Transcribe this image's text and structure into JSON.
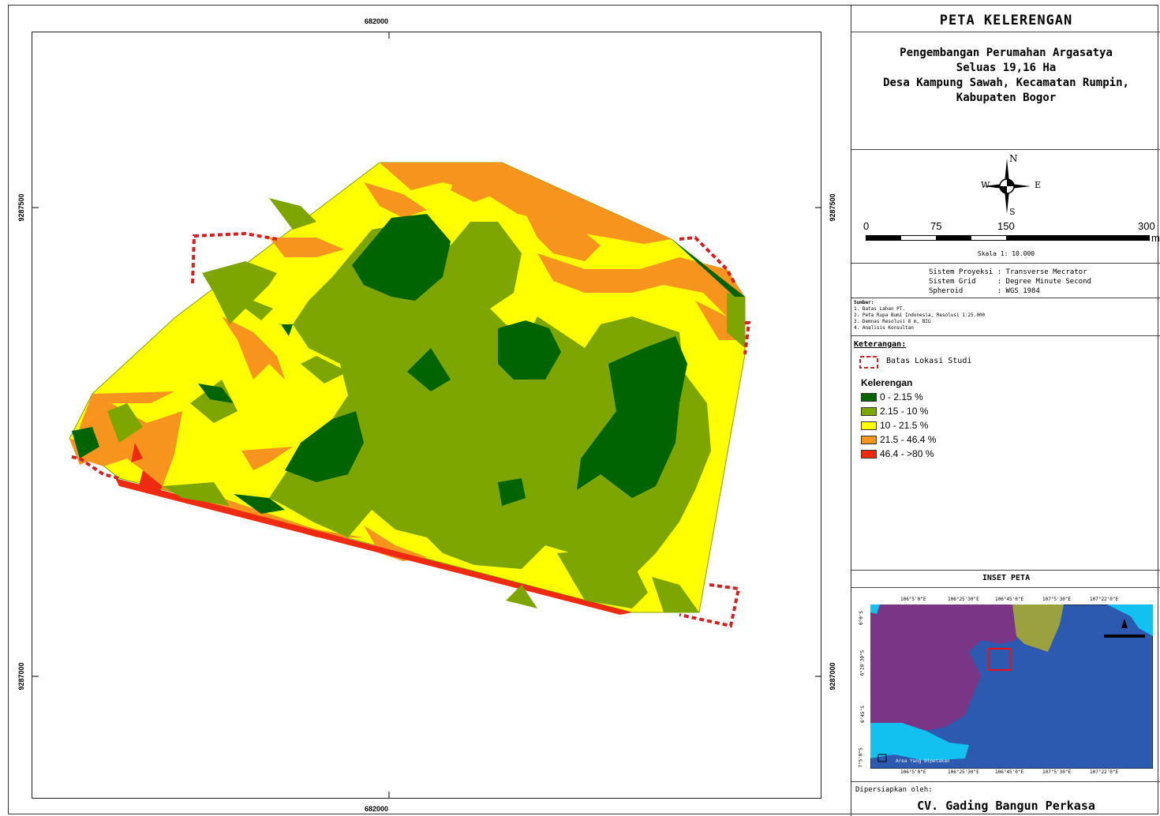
{
  "map": {
    "grid": {
      "x_top": "682000",
      "x_bottom": "682000",
      "y_upper": "9287500",
      "y_lower": "9287000"
    }
  },
  "panel": {
    "title": "PETA KELERENGAN",
    "subtitle": "Pengembangan Perumahan Argasatya\nSeluas 19,16 Ha\nDesa Kampung Sawah, Kecamatan Rumpin,\nKabupaten Bogor",
    "compass": {
      "n": "N",
      "s": "S",
      "e": "E",
      "w": "W"
    },
    "scalebar": {
      "ticks": [
        "0",
        "75",
        "150",
        "300"
      ],
      "unit": "m",
      "scale_text": "Skala 1: 10.000"
    },
    "projection": {
      "line1": "Sistem Proyeksi : Transverse Mecrator",
      "line2": "Sistem Grid     : Degree Minute Second",
      "line3": "Spheroid        : WGS 1984"
    },
    "sources": {
      "heading": "Sumber:",
      "items": [
        "1. Batas Lahan PT.",
        "2. Peta Rupa Bumi Indonesia, Resolusi 1:25.000",
        "3. Demnas Resolusi 8 m, BIG",
        "4. Analisis Konsultan"
      ]
    },
    "legend": {
      "heading": "Keterangan:",
      "boundary_label": "Batas Lokasi Studi",
      "slope_heading": "Kelerengan",
      "classes": [
        {
          "label": "0 - 2.15 %",
          "color": "#006400"
        },
        {
          "label": "2.15 - 10 %",
          "color": "#7da600"
        },
        {
          "label": "10 - 21.5 %",
          "color": "#ffff00"
        },
        {
          "label": "21.5 - 46.4 %",
          "color": "#f7941d"
        },
        {
          "label": "46.4 - >80 %",
          "color": "#ee2a10"
        }
      ]
    },
    "inset": {
      "title": "INSET PETA",
      "top_labels": [
        "106°5'0\"E",
        "106°25'30\"E",
        "106°45'0\"E",
        "107°5'30\"E",
        "107°22'0\"E"
      ],
      "left_labels": [
        "6°0'S",
        "6°20'30\"S",
        "6°45'S",
        "7°5'0\"S"
      ],
      "legend_text": "Area Yang Dipetakan"
    },
    "prepared_by_label": "Dipersiapkan oleh:",
    "company": "CV. Gading Bangun Perkasa"
  }
}
